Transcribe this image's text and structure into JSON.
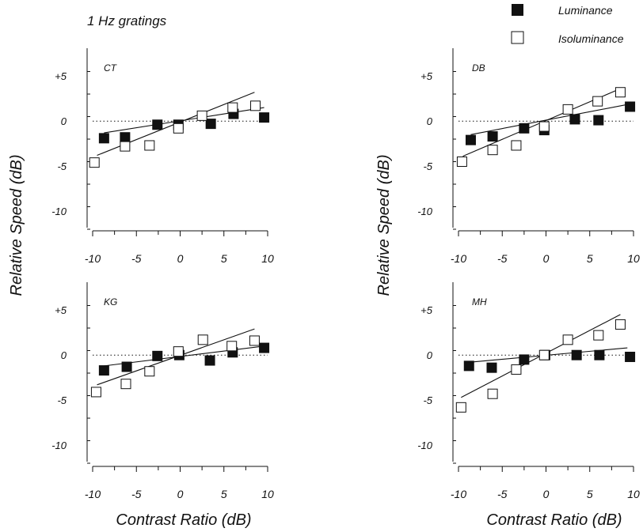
{
  "figure": {
    "title": "1 Hz gratings",
    "ylabel": "Relative Speed (dB)",
    "xlabel": "Contrast Ratio (dB)"
  },
  "legend": {
    "placement": "top-right",
    "items": [
      {
        "label": "Luminance",
        "marker": "filled-square",
        "color": "#111111"
      },
      {
        "label": "Isoluminance",
        "marker": "open-square",
        "color": "#111111"
      }
    ]
  },
  "chart_data": [
    {
      "type": "scatter",
      "panel": "CT",
      "xlim": [
        -10,
        10
      ],
      "ylim": [
        -12,
        8
      ],
      "xticks": [
        -10,
        -5,
        0,
        5,
        10
      ],
      "xtick_labels": [
        "-10",
        "-5",
        "0",
        "5",
        "10"
      ],
      "yticks": [
        5,
        0,
        -5,
        -10
      ],
      "ytick_labels": [
        "+5",
        "0",
        "-5",
        "-10"
      ],
      "reference_line": {
        "y": 0,
        "style": "dotted"
      },
      "series": [
        {
          "name": "Luminance",
          "marker": "filled-square",
          "x": [
            -8.7,
            -6.3,
            -2.6,
            -0.2,
            3.5,
            6.1,
            9.6
          ],
          "y": [
            -1.9,
            -1.8,
            -0.4,
            -0.4,
            -0.3,
            0.8,
            0.4
          ],
          "fit": {
            "x": [
              -8.7,
              9.6
            ],
            "y": [
              -1.3,
              1.5
            ]
          }
        },
        {
          "name": "Isoluminance",
          "marker": "open-square",
          "x": [
            -9.8,
            -6.3,
            -3.5,
            -0.2,
            2.5,
            6.0,
            8.6
          ],
          "y": [
            -4.6,
            -2.8,
            -2.7,
            -0.8,
            0.6,
            1.5,
            1.7
          ],
          "fit": {
            "x": [
              -9.5,
              8.5
            ],
            "y": [
              -3.8,
              3.2
            ]
          }
        }
      ]
    },
    {
      "type": "scatter",
      "panel": "DB",
      "xlim": [
        -10,
        10
      ],
      "ylim": [
        -12,
        8
      ],
      "xticks": [
        -10,
        -5,
        0,
        5,
        10
      ],
      "xtick_labels": [
        "-10",
        "-5",
        "0",
        "5",
        "10"
      ],
      "yticks": [
        5,
        0,
        -5,
        -10
      ],
      "ytick_labels": [
        "+5",
        "0",
        "-5",
        "-10"
      ],
      "reference_line": {
        "y": 0,
        "style": "dotted"
      },
      "series": [
        {
          "name": "Luminance",
          "marker": "filled-square",
          "x": [
            -8.6,
            -6.1,
            -2.5,
            -0.2,
            3.3,
            6.0,
            9.6
          ],
          "y": [
            -2.1,
            -1.7,
            -0.8,
            -1.0,
            0.2,
            0.1,
            1.6
          ],
          "fit": {
            "x": [
              -8.6,
              9.6
            ],
            "y": [
              -1.5,
              1.9
            ]
          }
        },
        {
          "name": "Isoluminance",
          "marker": "open-square",
          "x": [
            -9.6,
            -6.1,
            -3.4,
            -0.2,
            2.5,
            5.9,
            8.5
          ],
          "y": [
            -4.5,
            -3.2,
            -2.7,
            -0.6,
            1.3,
            2.2,
            3.2
          ],
          "fit": {
            "x": [
              -9.5,
              8.5
            ],
            "y": [
              -3.9,
              3.6
            ]
          }
        }
      ]
    },
    {
      "type": "scatter",
      "panel": "KG",
      "xlim": [
        -10,
        10
      ],
      "ylim": [
        -12,
        8
      ],
      "xticks": [
        -10,
        -5,
        0,
        5,
        10
      ],
      "xtick_labels": [
        "-10",
        "-5",
        "0",
        "5",
        "10"
      ],
      "yticks": [
        5,
        0,
        -5,
        -10
      ],
      "ytick_labels": [
        "+5",
        "0",
        "-5",
        "-10"
      ],
      "reference_line": {
        "y": 0,
        "style": "dotted"
      },
      "series": [
        {
          "name": "Luminance",
          "marker": "filled-square",
          "x": [
            -8.7,
            -6.1,
            -2.6,
            -0.1,
            3.4,
            6.0,
            9.6
          ],
          "y": [
            -1.7,
            -1.3,
            -0.1,
            0.0,
            -0.6,
            0.3,
            0.8
          ],
          "fit": {
            "x": [
              -8.7,
              9.6
            ],
            "y": [
              -1.2,
              1.0
            ]
          }
        },
        {
          "name": "Isoluminance",
          "marker": "open-square",
          "x": [
            -9.6,
            -6.2,
            -3.5,
            -0.2,
            2.6,
            5.9,
            8.5
          ],
          "y": [
            -4.1,
            -3.2,
            -1.8,
            0.4,
            1.7,
            1.0,
            1.6
          ],
          "fit": {
            "x": [
              -9.5,
              8.5
            ],
            "y": [
              -3.3,
              2.9
            ]
          }
        }
      ]
    },
    {
      "type": "scatter",
      "panel": "MH",
      "xlim": [
        -10,
        10
      ],
      "ylim": [
        -12,
        8
      ],
      "xticks": [
        -10,
        -5,
        0,
        5,
        10
      ],
      "xtick_labels": [
        "-10",
        "-5",
        "0",
        "5",
        "10"
      ],
      "yticks": [
        5,
        0,
        -5,
        -10
      ],
      "ytick_labels": [
        "+5",
        "0",
        "-5",
        "-10"
      ],
      "reference_line": {
        "y": 0,
        "style": "dotted"
      },
      "series": [
        {
          "name": "Luminance",
          "marker": "filled-square",
          "x": [
            -8.8,
            -6.2,
            -2.5,
            -0.1,
            3.5,
            6.1,
            9.6
          ],
          "y": [
            -1.2,
            -1.4,
            -0.5,
            0.0,
            0.0,
            0.0,
            -0.2
          ],
          "fit": {
            "x": [
              -8.8,
              9.3
            ],
            "y": [
              -0.8,
              0.8
            ]
          }
        },
        {
          "name": "Isoluminance",
          "marker": "open-square",
          "x": [
            -9.7,
            -6.1,
            -3.4,
            -0.2,
            2.5,
            6.0,
            8.5
          ],
          "y": [
            -5.8,
            -4.3,
            -1.6,
            0.0,
            1.7,
            2.2,
            3.4
          ],
          "fit": {
            "x": [
              -9.7,
              8.5
            ],
            "y": [
              -4.7,
              4.5
            ]
          }
        }
      ]
    }
  ]
}
